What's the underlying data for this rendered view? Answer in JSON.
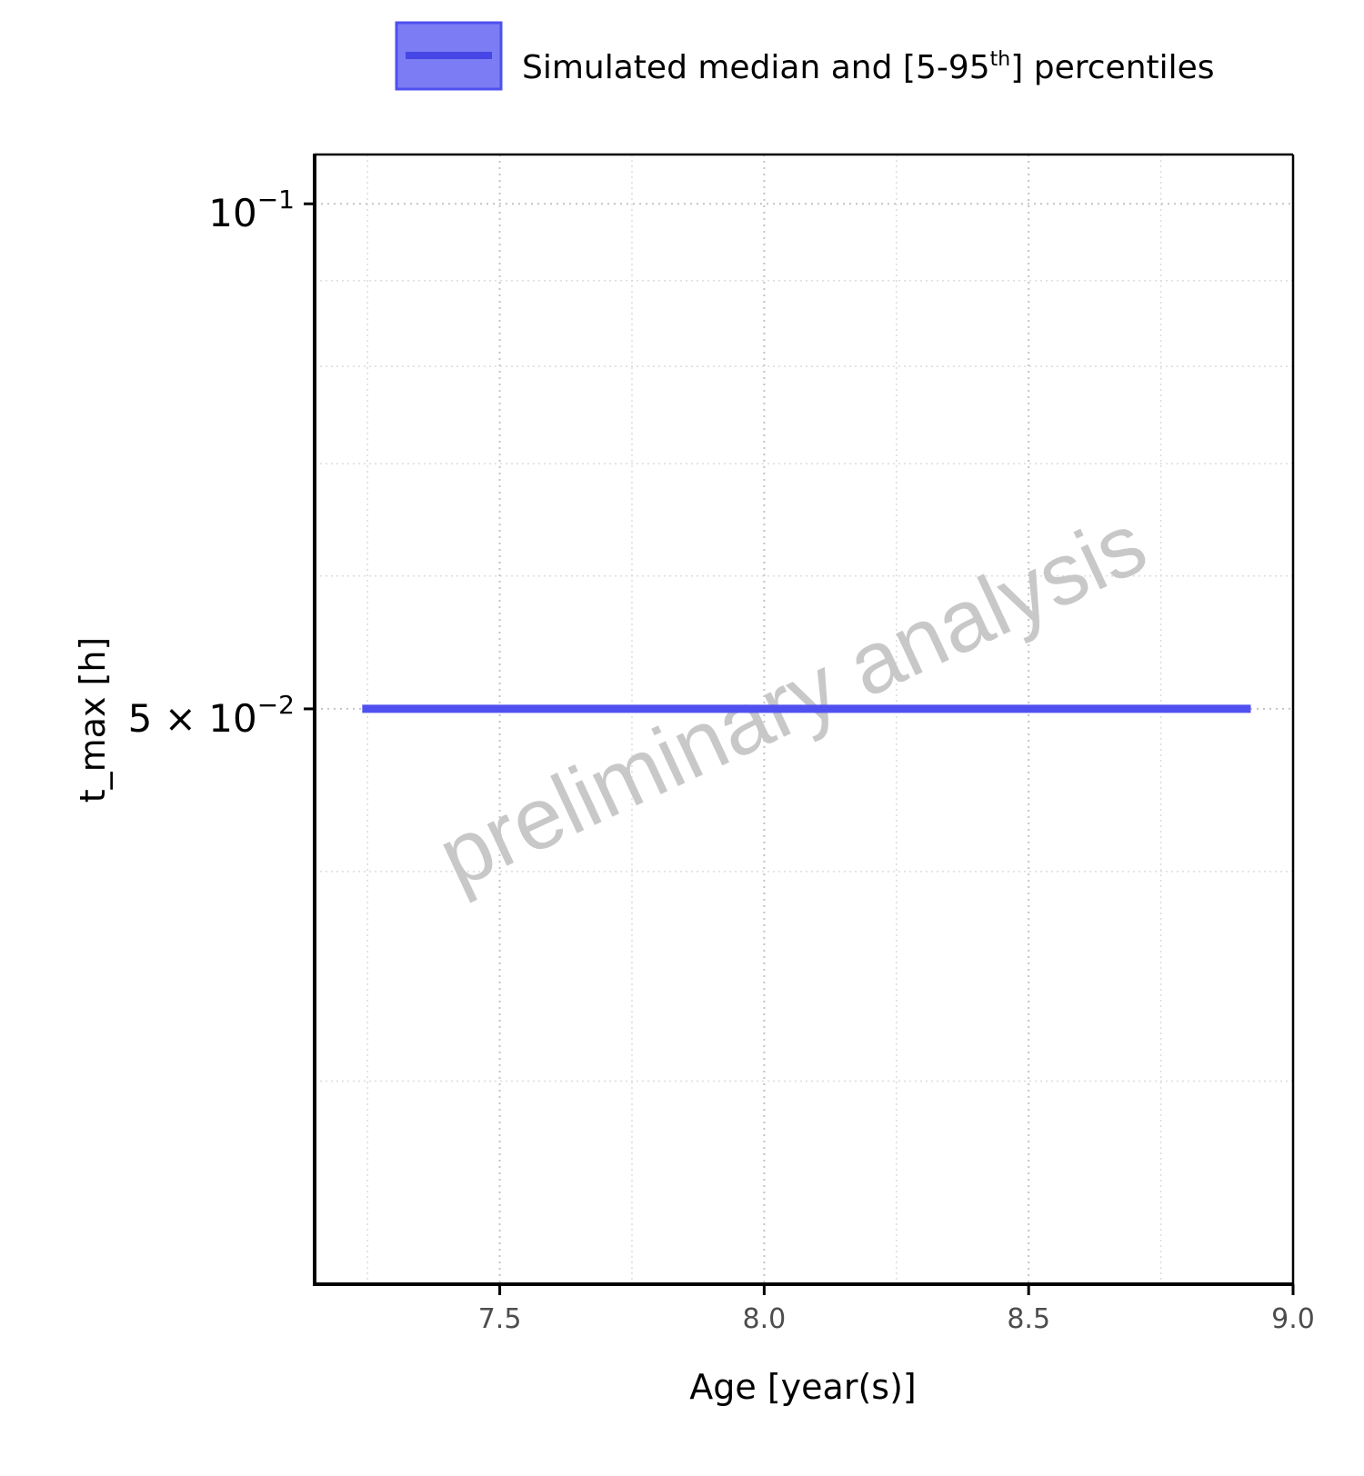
{
  "chart_data": {
    "type": "line",
    "xlabel": "Age [year(s)]",
    "ylabel": "t_max [h]",
    "xlim": [
      7.15,
      9.0
    ],
    "ylim": [
      0.0227,
      0.107
    ],
    "y_scale": "log",
    "grid": true,
    "x_ticks": [
      {
        "value": 7.5,
        "label": "7.5"
      },
      {
        "value": 8.0,
        "label": "8.0"
      },
      {
        "value": 8.5,
        "label": "8.5"
      },
      {
        "value": 9.0,
        "label": "9.0"
      }
    ],
    "x_minor_ticks": [
      7.25,
      7.75,
      8.25,
      8.75
    ],
    "y_ticks": [
      {
        "value": 0.1,
        "mantissa": "",
        "base": "10",
        "exponent": "−1"
      },
      {
        "value": 0.05,
        "mantissa": "5",
        "times": "×",
        "base": "10",
        "exponent": "−2"
      }
    ],
    "y_minor_grid": [
      0.03,
      0.04,
      0.06,
      0.07,
      0.08,
      0.09
    ],
    "legend": {
      "position": "top",
      "entries": [
        {
          "text": "Simulated median and [5-95",
          "sup": "th",
          "text_after": "] percentiles"
        }
      ]
    },
    "series": [
      {
        "color": "#5050f0",
        "band_color": "#5050f0",
        "x": [
          7.24,
          8.92
        ],
        "median": [
          0.05,
          0.05
        ],
        "p5": [
          0.05,
          0.05
        ],
        "p95": [
          0.05,
          0.05
        ]
      }
    ],
    "watermark": "preliminary analysis"
  }
}
